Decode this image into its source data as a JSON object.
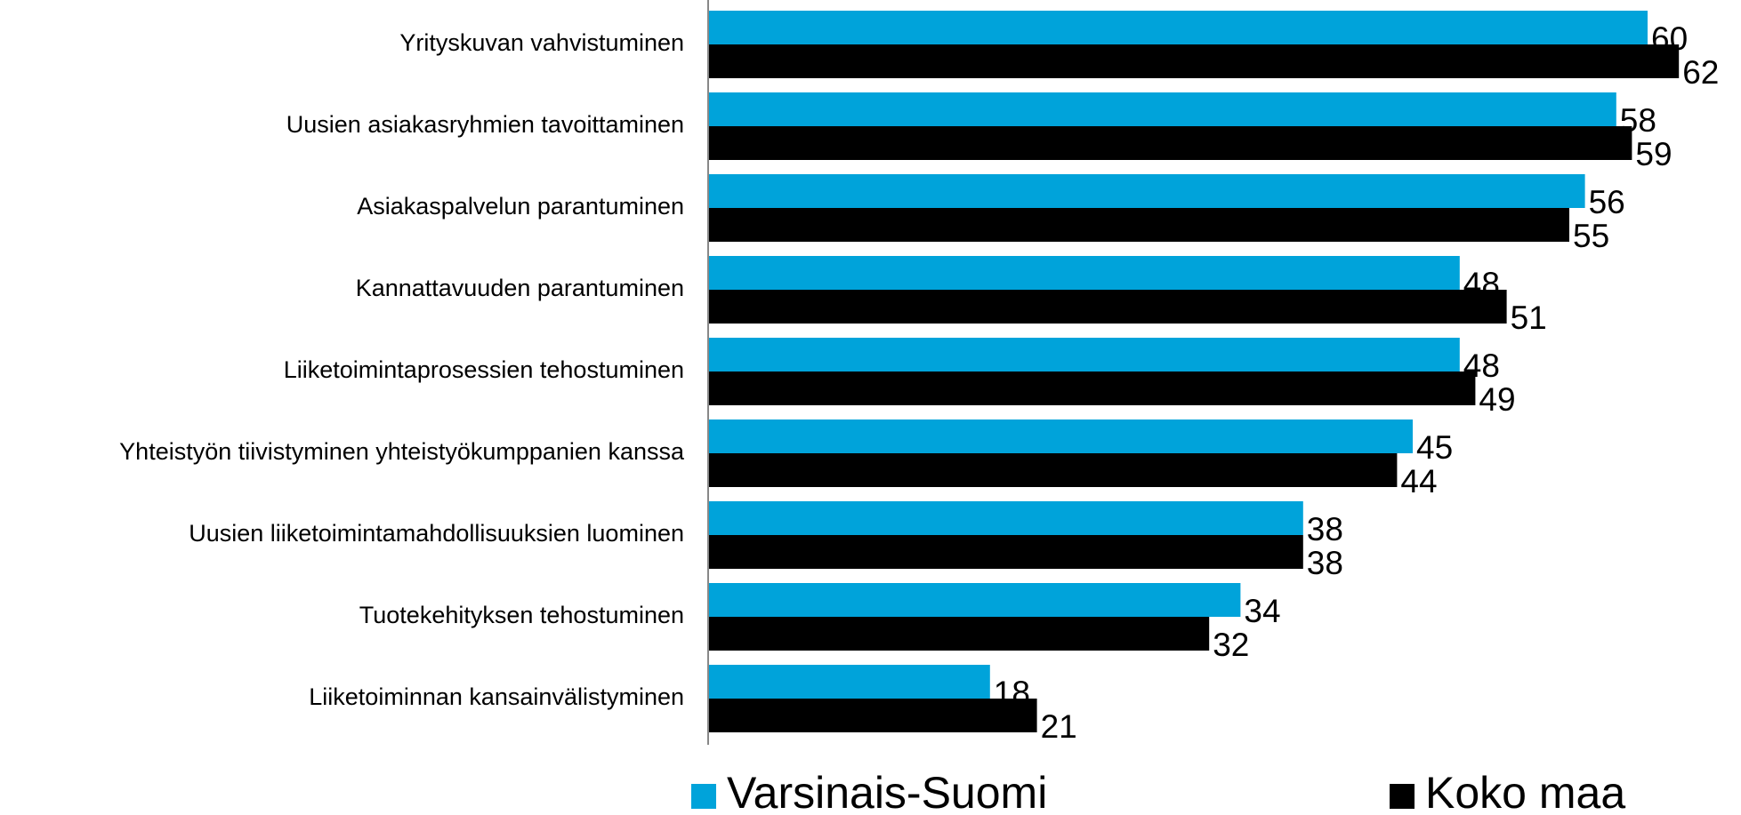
{
  "chart_data": {
    "type": "barh",
    "categories": [
      "Yrityskuvan vahvistuminen",
      "Uusien asiakasryhmien tavoittaminen",
      "Asiakaspalvelun parantuminen",
      "Kannattavuuden parantuminen",
      "Liiketoimintaprosessien tehostuminen",
      "Yhteistyön tiivistyminen yhteistyökumppanien kanssa",
      "Uusien liiketoimintamahdollisuuksien luominen",
      "Tuotekehityksen tehostuminen",
      "Liiketoiminnan kansainvälistyminen"
    ],
    "series": [
      {
        "name": "Varsinais-Suomi",
        "color": "#00a3da",
        "values": [
          60,
          58,
          56,
          48,
          48,
          45,
          38,
          34,
          18
        ]
      },
      {
        "name": "Koko maa",
        "color": "#000000",
        "values": [
          62,
          59,
          55,
          51,
          49,
          44,
          38,
          32,
          21
        ]
      }
    ],
    "xlim": [
      0,
      65
    ]
  }
}
